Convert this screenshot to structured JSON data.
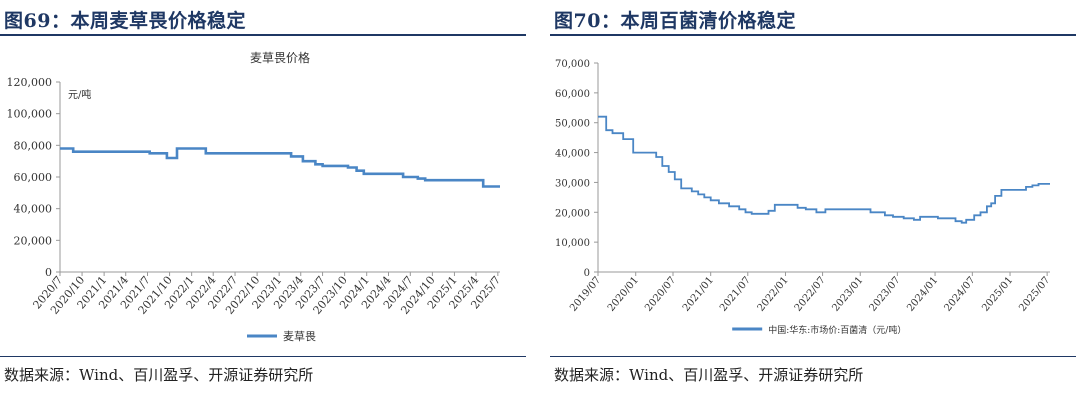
{
  "colors": {
    "title": "#1f3864",
    "line": "#4a86c5",
    "axis": "#999999"
  },
  "panels": [
    {
      "heading": "图69：本周麦草畏价格稳定",
      "source": "数据来源：Wind、百川盈孚、开源证券研究所"
    },
    {
      "heading": "图70：本周百菌清价格稳定",
      "source": "数据来源：Wind、百川盈孚、开源证券研究所"
    }
  ],
  "chart_data": [
    {
      "type": "line",
      "title": "麦草畏价格",
      "unit_label": "元/吨",
      "ylim": [
        0,
        120000
      ],
      "yticks": [
        "0",
        "20,000",
        "40,000",
        "60,000",
        "80,000",
        "100,000",
        "120,000"
      ],
      "xticks": [
        "2020/7",
        "2020/10",
        "2021/1",
        "2021/4",
        "2021/7",
        "2021/10",
        "2022/1",
        "2022/4",
        "2022/7",
        "2022/10",
        "2023/1",
        "2023/4",
        "2023/7",
        "2023/10",
        "2024/1",
        "2024/4",
        "2024/7",
        "2024/10",
        "2025/1",
        "2025/4",
        "2025/7"
      ],
      "xlim": [
        "2020-07-01",
        "2025-07-10"
      ],
      "legend": "bottom",
      "series": [
        {
          "name": "麦草畏",
          "points": [
            [
              "2020-07-01",
              78000
            ],
            [
              "2020-08-25",
              78000
            ],
            [
              "2020-08-25",
              76000
            ],
            [
              "2021-07-10",
              76000
            ],
            [
              "2021-07-10",
              75000
            ],
            [
              "2021-09-20",
              75000
            ],
            [
              "2021-09-20",
              72000
            ],
            [
              "2021-11-01",
              72000
            ],
            [
              "2021-11-01",
              78000
            ],
            [
              "2022-03-01",
              78000
            ],
            [
              "2022-03-01",
              75000
            ],
            [
              "2023-02-20",
              75000
            ],
            [
              "2023-02-20",
              73000
            ],
            [
              "2023-04-10",
              73000
            ],
            [
              "2023-04-10",
              70000
            ],
            [
              "2023-06-01",
              70000
            ],
            [
              "2023-06-01",
              68000
            ],
            [
              "2023-07-01",
              68000
            ],
            [
              "2023-07-01",
              67000
            ],
            [
              "2023-10-15",
              67000
            ],
            [
              "2023-10-15",
              66000
            ],
            [
              "2023-11-20",
              66000
            ],
            [
              "2023-11-20",
              64000
            ],
            [
              "2023-12-20",
              64000
            ],
            [
              "2023-12-20",
              62000
            ],
            [
              "2024-06-01",
              62000
            ],
            [
              "2024-06-01",
              60000
            ],
            [
              "2024-08-01",
              60000
            ],
            [
              "2024-08-01",
              59000
            ],
            [
              "2024-09-01",
              59000
            ],
            [
              "2024-09-01",
              58000
            ],
            [
              "2025-05-01",
              58000
            ],
            [
              "2025-05-01",
              54000
            ],
            [
              "2025-07-10",
              54000
            ]
          ]
        }
      ]
    },
    {
      "type": "line",
      "title": "",
      "ylim": [
        0,
        70000
      ],
      "yticks": [
        "0",
        "10,000",
        "20,000",
        "30,000",
        "40,000",
        "50,000",
        "60,000",
        "70,000"
      ],
      "xticks": [
        "2019/07",
        "2020/01",
        "2020/07",
        "2021/01",
        "2021/07",
        "2022/01",
        "2022/07",
        "2023/01",
        "2023/07",
        "2024/01",
        "2024/07",
        "2025/01",
        "2025/07"
      ],
      "xlim": [
        "2019-07-01",
        "2025-07-15"
      ],
      "legend": "bottom",
      "series": [
        {
          "name": "中国:华东:市场价:百菌清（元/吨）",
          "points": [
            [
              "2019-07-01",
              52000
            ],
            [
              "2019-08-10",
              52000
            ],
            [
              "2019-08-10",
              47500
            ],
            [
              "2019-09-10",
              47500
            ],
            [
              "2019-09-10",
              46500
            ],
            [
              "2019-11-01",
              46500
            ],
            [
              "2019-11-01",
              44500
            ],
            [
              "2019-12-20",
              44500
            ],
            [
              "2019-12-20",
              40000
            ],
            [
              "2020-04-10",
              40000
            ],
            [
              "2020-04-10",
              38500
            ],
            [
              "2020-05-10",
              38500
            ],
            [
              "2020-05-10",
              35500
            ],
            [
              "2020-06-10",
              35500
            ],
            [
              "2020-06-10",
              33500
            ],
            [
              "2020-07-10",
              33500
            ],
            [
              "2020-07-10",
              31000
            ],
            [
              "2020-08-10",
              31000
            ],
            [
              "2020-08-10",
              28000
            ],
            [
              "2020-10-01",
              28000
            ],
            [
              "2020-10-01",
              27000
            ],
            [
              "2020-11-01",
              27000
            ],
            [
              "2020-11-01",
              26000
            ],
            [
              "2020-12-01",
              26000
            ],
            [
              "2020-12-01",
              25000
            ],
            [
              "2021-01-01",
              25000
            ],
            [
              "2021-01-01",
              24000
            ],
            [
              "2021-02-10",
              24000
            ],
            [
              "2021-02-10",
              23000
            ],
            [
              "2021-04-01",
              23000
            ],
            [
              "2021-04-01",
              22000
            ],
            [
              "2021-05-20",
              22000
            ],
            [
              "2021-05-20",
              21000
            ],
            [
              "2021-06-20",
              21000
            ],
            [
              "2021-06-20",
              20000
            ],
            [
              "2021-07-20",
              20000
            ],
            [
              "2021-07-20",
              19500
            ],
            [
              "2021-10-10",
              19500
            ],
            [
              "2021-10-10",
              20500
            ],
            [
              "2021-11-10",
              20500
            ],
            [
              "2021-11-10",
              22500
            ],
            [
              "2022-03-01",
              22500
            ],
            [
              "2022-03-01",
              21500
            ],
            [
              "2022-04-10",
              21500
            ],
            [
              "2022-04-10",
              21000
            ],
            [
              "2022-06-01",
              21000
            ],
            [
              "2022-06-01",
              20000
            ],
            [
              "2022-07-15",
              20000
            ],
            [
              "2022-07-15",
              21000
            ],
            [
              "2023-02-20",
              21000
            ],
            [
              "2023-02-20",
              20000
            ],
            [
              "2023-05-01",
              20000
            ],
            [
              "2023-05-01",
              19000
            ],
            [
              "2023-06-10",
              19000
            ],
            [
              "2023-06-10",
              18500
            ],
            [
              "2023-08-01",
              18500
            ],
            [
              "2023-08-01",
              18000
            ],
            [
              "2023-09-20",
              18000
            ],
            [
              "2023-09-20",
              17500
            ],
            [
              "2023-10-20",
              17500
            ],
            [
              "2023-10-20",
              18500
            ],
            [
              "2024-01-15",
              18500
            ],
            [
              "2024-01-15",
              18000
            ],
            [
              "2024-04-10",
              18000
            ],
            [
              "2024-04-10",
              17000
            ],
            [
              "2024-05-10",
              17000
            ],
            [
              "2024-05-10",
              16500
            ],
            [
              "2024-06-01",
              16500
            ],
            [
              "2024-06-01",
              17500
            ],
            [
              "2024-07-10",
              17500
            ],
            [
              "2024-07-10",
              19000
            ],
            [
              "2024-08-10",
              19000
            ],
            [
              "2024-08-10",
              20000
            ],
            [
              "2024-09-10",
              20000
            ],
            [
              "2024-09-10",
              22000
            ],
            [
              "2024-10-01",
              22000
            ],
            [
              "2024-10-01",
              23000
            ],
            [
              "2024-10-20",
              23000
            ],
            [
              "2024-10-20",
              25500
            ],
            [
              "2024-11-20",
              25500
            ],
            [
              "2024-11-20",
              27500
            ],
            [
              "2025-03-20",
              27500
            ],
            [
              "2025-03-20",
              28500
            ],
            [
              "2025-04-20",
              28500
            ],
            [
              "2025-04-20",
              29000
            ],
            [
              "2025-05-20",
              29000
            ],
            [
              "2025-05-20",
              29500
            ],
            [
              "2025-07-15",
              29500
            ]
          ]
        }
      ]
    }
  ]
}
